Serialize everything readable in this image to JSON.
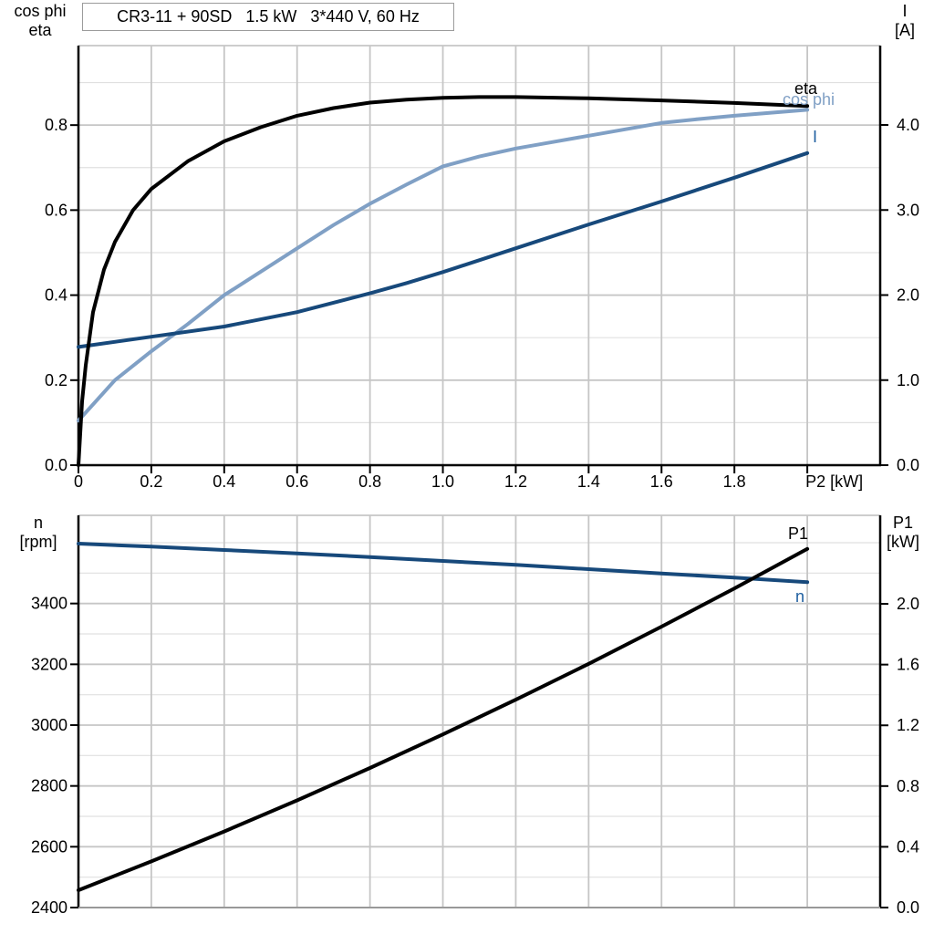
{
  "title": "CR3-11 + 90SD   1.5 kW   3*440 V, 60 Hz",
  "colors": {
    "curve_black": "#000000",
    "curve_dark_blue": "#17497b",
    "curve_light_blue": "#80a0c5",
    "label_blue": "#1f5fa0",
    "label_light_blue": "#80a0c5",
    "label_black": "#000000",
    "grid_major": "#c6c6c6",
    "grid_minor": "#e0e0e0",
    "axis": "#000000",
    "frame_gray": "#999999",
    "text": "#000000"
  },
  "chart_data": [
    {
      "type": "line",
      "name": "motor-electrical-curves",
      "x_axis": {
        "label": "P2 [kW]",
        "range": [
          0,
          2.2
        ],
        "tick_values": [
          0,
          0.2,
          0.4,
          0.6,
          0.8,
          1.0,
          1.2,
          1.4,
          1.6,
          1.8
        ],
        "tick_labels": [
          "0",
          "0.2",
          "0.4",
          "0.6",
          "0.8",
          "1.0",
          "1.2",
          "1.4",
          "1.6",
          "1.8"
        ],
        "gridline_values": [
          0.2,
          0.4,
          0.6,
          0.8,
          1.0,
          1.2,
          1.4,
          1.6,
          1.8,
          2.0
        ]
      },
      "left_axis": {
        "label_lines": [
          "cos phi",
          "eta"
        ],
        "range": [
          0,
          0.987
        ],
        "tick_values": [
          0.0,
          0.2,
          0.4,
          0.6,
          0.8
        ],
        "tick_labels": [
          "0.0",
          "0.2",
          "0.4",
          "0.6",
          "0.8"
        ],
        "minor_gridlines": [
          0.1,
          0.3,
          0.5,
          0.7,
          0.9
        ]
      },
      "right_axis": {
        "label_lines": [
          "I",
          "[A]"
        ],
        "range": [
          0,
          4.933
        ],
        "tick_values": [
          0.0,
          1.0,
          2.0,
          3.0,
          4.0
        ],
        "tick_labels": [
          "0.0",
          "1.0",
          "2.0",
          "3.0",
          "4.0"
        ]
      },
      "series": [
        {
          "name": "cos_phi",
          "label": "cos phi",
          "axis": "left",
          "color": "#80a0c5",
          "points": [
            [
              0,
              0.105
            ],
            [
              0.1,
              0.2
            ],
            [
              0.2,
              0.268
            ],
            [
              0.3,
              0.332
            ],
            [
              0.4,
              0.4
            ],
            [
              0.5,
              0.455
            ],
            [
              0.6,
              0.51
            ],
            [
              0.7,
              0.565
            ],
            [
              0.8,
              0.615
            ],
            [
              0.9,
              0.66
            ],
            [
              1.0,
              0.703
            ],
            [
              1.1,
              0.726
            ],
            [
              1.2,
              0.745
            ],
            [
              1.3,
              0.76
            ],
            [
              1.4,
              0.775
            ],
            [
              1.5,
              0.79
            ],
            [
              1.6,
              0.805
            ],
            [
              1.7,
              0.814
            ],
            [
              1.8,
              0.822
            ],
            [
              1.9,
              0.829
            ],
            [
              2.0,
              0.836
            ]
          ]
        },
        {
          "name": "I",
          "label": "I",
          "axis": "right",
          "color": "#17497b",
          "points": [
            [
              0,
              1.39
            ],
            [
              0.2,
              1.51
            ],
            [
              0.4,
              1.63
            ],
            [
              0.6,
              1.8
            ],
            [
              0.8,
              2.02
            ],
            [
              0.9,
              2.14
            ],
            [
              1.0,
              2.27
            ],
            [
              1.2,
              2.55
            ],
            [
              1.4,
              2.83
            ],
            [
              1.6,
              3.1
            ],
            [
              1.8,
              3.38
            ],
            [
              2.0,
              3.67
            ]
          ]
        },
        {
          "name": "eta",
          "label": "eta",
          "axis": "left",
          "color": "#000000",
          "points": [
            [
              0,
              0
            ],
            [
              0.01,
              0.15
            ],
            [
              0.02,
              0.235
            ],
            [
              0.04,
              0.36
            ],
            [
              0.07,
              0.46
            ],
            [
              0.1,
              0.525
            ],
            [
              0.15,
              0.6
            ],
            [
              0.2,
              0.65
            ],
            [
              0.3,
              0.715
            ],
            [
              0.4,
              0.762
            ],
            [
              0.5,
              0.795
            ],
            [
              0.6,
              0.822
            ],
            [
              0.7,
              0.84
            ],
            [
              0.8,
              0.853
            ],
            [
              0.9,
              0.86
            ],
            [
              1.0,
              0.864
            ],
            [
              1.1,
              0.866
            ],
            [
              1.2,
              0.866
            ],
            [
              1.4,
              0.863
            ],
            [
              1.6,
              0.858
            ],
            [
              1.8,
              0.852
            ],
            [
              2.0,
              0.845
            ]
          ]
        }
      ]
    },
    {
      "type": "line",
      "name": "speed-power-curves",
      "x_axis": {
        "label": "",
        "range": [
          0,
          2.2
        ],
        "tick_values": [],
        "tick_labels": [],
        "gridline_values": [
          0.2,
          0.4,
          0.6,
          0.8,
          1.0,
          1.2,
          1.4,
          1.6,
          1.8,
          2.0
        ]
      },
      "left_axis": {
        "label_lines": [
          "n",
          "[rpm]"
        ],
        "range": [
          2400,
          3690
        ],
        "tick_values": [
          2400,
          2600,
          2800,
          3000,
          3200,
          3400
        ],
        "tick_labels": [
          "2400",
          "2600",
          "2800",
          "3000",
          "3200",
          "3400"
        ],
        "minor_gridlines": [
          2500,
          2700,
          2900,
          3100,
          3300,
          3500,
          3600
        ]
      },
      "right_axis": {
        "label_lines": [
          "P1",
          "[kW]"
        ],
        "range": [
          0,
          2.583
        ],
        "tick_values": [
          0.0,
          0.4,
          0.8,
          1.2,
          1.6,
          2.0
        ],
        "tick_labels": [
          "0.0",
          "0.4",
          "0.8",
          "1.2",
          "1.6",
          "2.0"
        ]
      },
      "series": [
        {
          "name": "n",
          "label": "n",
          "axis": "left",
          "color": "#17497b",
          "points": [
            [
              0,
              3597
            ],
            [
              0.2,
              3587
            ],
            [
              0.4,
              3576
            ],
            [
              0.6,
              3565
            ],
            [
              0.8,
              3553
            ],
            [
              1.0,
              3540
            ],
            [
              1.2,
              3527
            ],
            [
              1.4,
              3513
            ],
            [
              1.6,
              3499
            ],
            [
              1.8,
              3485
            ],
            [
              2.0,
              3470
            ]
          ]
        },
        {
          "name": "P1",
          "label": "P1",
          "axis": "right",
          "color": "#000000",
          "points": [
            [
              0,
              0.114
            ],
            [
              0.2,
              0.304
            ],
            [
              0.4,
              0.501
            ],
            [
              0.6,
              0.706
            ],
            [
              0.8,
              0.919
            ],
            [
              1.0,
              1.14
            ],
            [
              1.2,
              1.369
            ],
            [
              1.4,
              1.605
            ],
            [
              1.6,
              1.85
            ],
            [
              1.8,
              2.102
            ],
            [
              2.0,
              2.362
            ]
          ]
        }
      ]
    }
  ]
}
